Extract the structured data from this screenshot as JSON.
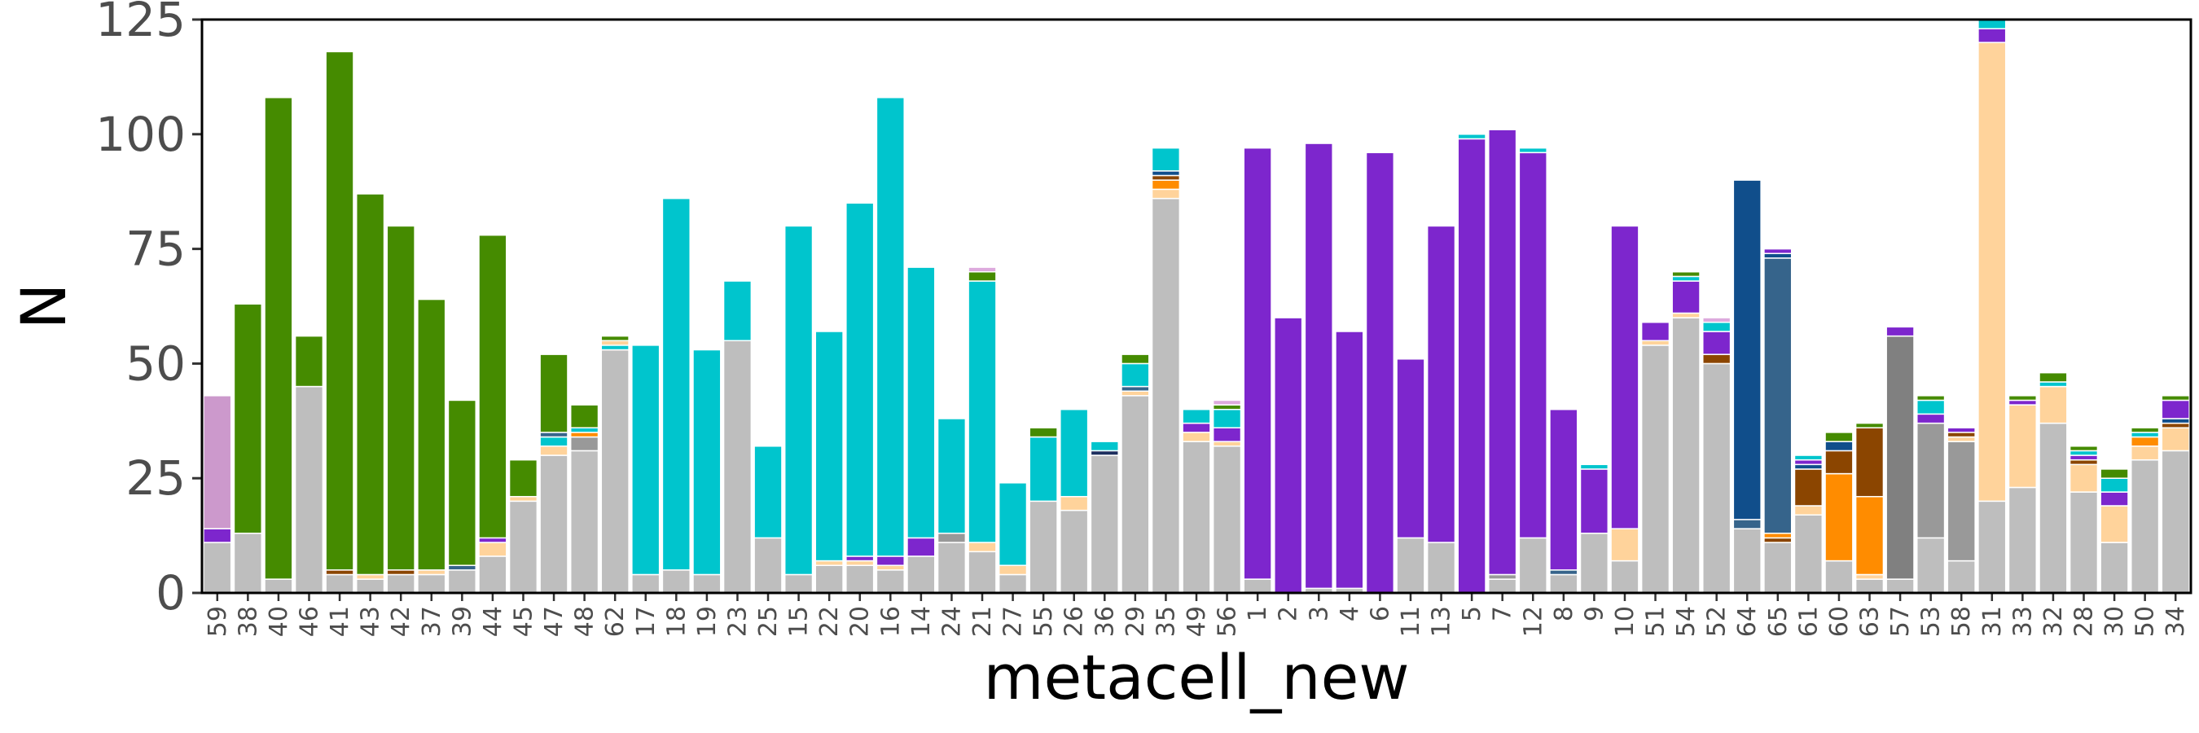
{
  "chart_data": {
    "type": "bar",
    "stacked": true,
    "title": "",
    "xlabel": "metacell_new",
    "ylabel": "N",
    "ylim": [
      0,
      125
    ],
    "yticks": [
      0,
      25,
      50,
      75,
      100,
      125
    ],
    "legend": "none",
    "grid": false,
    "colors": {
      "grey": "#bebebe",
      "dark_grey": "#999999",
      "darker_grey": "#808080",
      "green": "#458b00",
      "cyan": "#00c5cd",
      "purple": "#7d26cd",
      "peach": "#ffd39b",
      "orange": "#ff8c00",
      "brown": "#8b4500",
      "navy": "#104e8b",
      "steelblue": "#36648b",
      "plum": "#cc99cc",
      "dark_navy": "#1c2f5e",
      "light_pink": "#ddaadd"
    },
    "categories": [
      "59",
      "38",
      "40",
      "46",
      "41",
      "43",
      "42",
      "37",
      "39",
      "44",
      "45",
      "47",
      "48",
      "62",
      "17",
      "18",
      "19",
      "23",
      "25",
      "15",
      "22",
      "20",
      "16",
      "14",
      "24",
      "21",
      "27",
      "55",
      "26",
      "36",
      "29",
      "35",
      "49",
      "56",
      "1",
      "2",
      "3",
      "4",
      "6",
      "11",
      "13",
      "5",
      "7",
      "12",
      "8",
      "9",
      "10",
      "51",
      "54",
      "52",
      "64",
      "65",
      "61",
      "60",
      "63",
      "57",
      "53",
      "58",
      "31",
      "33",
      "32",
      "28",
      "30",
      "50",
      "34"
    ],
    "stacks": [
      [
        {
          "c": "grey",
          "v": 11
        },
        {
          "c": "purple",
          "v": 3
        },
        {
          "c": "plum",
          "v": 29
        }
      ],
      [
        {
          "c": "grey",
          "v": 13
        },
        {
          "c": "green",
          "v": 50
        }
      ],
      [
        {
          "c": "grey",
          "v": 3
        },
        {
          "c": "green",
          "v": 105
        }
      ],
      [
        {
          "c": "grey",
          "v": 45
        },
        {
          "c": "green",
          "v": 11
        }
      ],
      [
        {
          "c": "grey",
          "v": 4
        },
        {
          "c": "brown",
          "v": 1
        },
        {
          "c": "green",
          "v": 113
        }
      ],
      [
        {
          "c": "grey",
          "v": 3
        },
        {
          "c": "peach",
          "v": 1
        },
        {
          "c": "green",
          "v": 83
        }
      ],
      [
        {
          "c": "grey",
          "v": 4
        },
        {
          "c": "brown",
          "v": 1
        },
        {
          "c": "green",
          "v": 75
        }
      ],
      [
        {
          "c": "grey",
          "v": 4
        },
        {
          "c": "peach",
          "v": 1
        },
        {
          "c": "green",
          "v": 59
        }
      ],
      [
        {
          "c": "grey",
          "v": 5
        },
        {
          "c": "steelblue",
          "v": 1
        },
        {
          "c": "green",
          "v": 36
        }
      ],
      [
        {
          "c": "grey",
          "v": 8
        },
        {
          "c": "peach",
          "v": 3
        },
        {
          "c": "purple",
          "v": 1
        },
        {
          "c": "green",
          "v": 66
        }
      ],
      [
        {
          "c": "grey",
          "v": 20
        },
        {
          "c": "peach",
          "v": 1
        },
        {
          "c": "green",
          "v": 8
        }
      ],
      [
        {
          "c": "grey",
          "v": 30
        },
        {
          "c": "peach",
          "v": 2
        },
        {
          "c": "cyan",
          "v": 2
        },
        {
          "c": "steelblue",
          "v": 1
        },
        {
          "c": "green",
          "v": 17
        }
      ],
      [
        {
          "c": "grey",
          "v": 31
        },
        {
          "c": "dark_grey",
          "v": 3
        },
        {
          "c": "orange",
          "v": 1
        },
        {
          "c": "cyan",
          "v": 1
        },
        {
          "c": "green",
          "v": 5
        }
      ],
      [
        {
          "c": "grey",
          "v": 53
        },
        {
          "c": "cyan",
          "v": 1
        },
        {
          "c": "peach",
          "v": 1
        },
        {
          "c": "green",
          "v": 1
        }
      ],
      [
        {
          "c": "grey",
          "v": 4
        },
        {
          "c": "cyan",
          "v": 50
        }
      ],
      [
        {
          "c": "grey",
          "v": 5
        },
        {
          "c": "cyan",
          "v": 81
        }
      ],
      [
        {
          "c": "grey",
          "v": 4
        },
        {
          "c": "cyan",
          "v": 49
        }
      ],
      [
        {
          "c": "grey",
          "v": 55
        },
        {
          "c": "cyan",
          "v": 13
        }
      ],
      [
        {
          "c": "grey",
          "v": 12
        },
        {
          "c": "cyan",
          "v": 20
        }
      ],
      [
        {
          "c": "grey",
          "v": 4
        },
        {
          "c": "cyan",
          "v": 76
        }
      ],
      [
        {
          "c": "grey",
          "v": 6
        },
        {
          "c": "peach",
          "v": 1
        },
        {
          "c": "cyan",
          "v": 50
        }
      ],
      [
        {
          "c": "grey",
          "v": 6
        },
        {
          "c": "peach",
          "v": 1
        },
        {
          "c": "purple",
          "v": 1
        },
        {
          "c": "cyan",
          "v": 77
        }
      ],
      [
        {
          "c": "grey",
          "v": 5
        },
        {
          "c": "peach",
          "v": 1
        },
        {
          "c": "purple",
          "v": 2
        },
        {
          "c": "cyan",
          "v": 100
        }
      ],
      [
        {
          "c": "grey",
          "v": 8
        },
        {
          "c": "purple",
          "v": 4
        },
        {
          "c": "cyan",
          "v": 59
        }
      ],
      [
        {
          "c": "grey",
          "v": 11
        },
        {
          "c": "dark_grey",
          "v": 2
        },
        {
          "c": "cyan",
          "v": 25
        }
      ],
      [
        {
          "c": "grey",
          "v": 9
        },
        {
          "c": "peach",
          "v": 2
        },
        {
          "c": "cyan",
          "v": 57
        },
        {
          "c": "green",
          "v": 2
        },
        {
          "c": "light_pink",
          "v": 1
        }
      ],
      [
        {
          "c": "grey",
          "v": 4
        },
        {
          "c": "peach",
          "v": 2
        },
        {
          "c": "cyan",
          "v": 18
        }
      ],
      [
        {
          "c": "grey",
          "v": 20
        },
        {
          "c": "cyan",
          "v": 14
        },
        {
          "c": "green",
          "v": 2
        }
      ],
      [
        {
          "c": "grey",
          "v": 18
        },
        {
          "c": "peach",
          "v": 3
        },
        {
          "c": "cyan",
          "v": 19
        }
      ],
      [
        {
          "c": "grey",
          "v": 30
        },
        {
          "c": "dark_navy",
          "v": 1
        },
        {
          "c": "cyan",
          "v": 2
        }
      ],
      [
        {
          "c": "grey",
          "v": 43
        },
        {
          "c": "peach",
          "v": 1
        },
        {
          "c": "steelblue",
          "v": 1
        },
        {
          "c": "cyan",
          "v": 5
        },
        {
          "c": "green",
          "v": 2
        }
      ],
      [
        {
          "c": "grey",
          "v": 86
        },
        {
          "c": "peach",
          "v": 2
        },
        {
          "c": "orange",
          "v": 2
        },
        {
          "c": "brown",
          "v": 1
        },
        {
          "c": "navy",
          "v": 1
        },
        {
          "c": "cyan",
          "v": 5
        }
      ],
      [
        {
          "c": "grey",
          "v": 33
        },
        {
          "c": "peach",
          "v": 2
        },
        {
          "c": "purple",
          "v": 2
        },
        {
          "c": "cyan",
          "v": 3
        }
      ],
      [
        {
          "c": "grey",
          "v": 32
        },
        {
          "c": "peach",
          "v": 1
        },
        {
          "c": "purple",
          "v": 3
        },
        {
          "c": "cyan",
          "v": 4
        },
        {
          "c": "green",
          "v": 1
        },
        {
          "c": "light_pink",
          "v": 1
        }
      ],
      [
        {
          "c": "grey",
          "v": 3
        },
        {
          "c": "purple",
          "v": 94
        }
      ],
      [
        {
          "c": "purple",
          "v": 60
        }
      ],
      [
        {
          "c": "grey",
          "v": 1
        },
        {
          "c": "purple",
          "v": 97
        }
      ],
      [
        {
          "c": "grey",
          "v": 1
        },
        {
          "c": "purple",
          "v": 56
        }
      ],
      [
        {
          "c": "purple",
          "v": 96
        }
      ],
      [
        {
          "c": "grey",
          "v": 12
        },
        {
          "c": "purple",
          "v": 39
        }
      ],
      [
        {
          "c": "grey",
          "v": 11
        },
        {
          "c": "purple",
          "v": 69
        }
      ],
      [
        {
          "c": "purple",
          "v": 99
        },
        {
          "c": "cyan",
          "v": 1
        }
      ],
      [
        {
          "c": "grey",
          "v": 3
        },
        {
          "c": "dark_grey",
          "v": 1
        },
        {
          "c": "purple",
          "v": 97
        }
      ],
      [
        {
          "c": "grey",
          "v": 12
        },
        {
          "c": "purple",
          "v": 84
        },
        {
          "c": "cyan",
          "v": 1
        }
      ],
      [
        {
          "c": "grey",
          "v": 4
        },
        {
          "c": "steelblue",
          "v": 1
        },
        {
          "c": "purple",
          "v": 35
        }
      ],
      [
        {
          "c": "grey",
          "v": 13
        },
        {
          "c": "purple",
          "v": 14
        },
        {
          "c": "cyan",
          "v": 1
        }
      ],
      [
        {
          "c": "grey",
          "v": 7
        },
        {
          "c": "peach",
          "v": 7
        },
        {
          "c": "purple",
          "v": 66
        }
      ],
      [
        {
          "c": "grey",
          "v": 54
        },
        {
          "c": "peach",
          "v": 1
        },
        {
          "c": "purple",
          "v": 4
        }
      ],
      [
        {
          "c": "grey",
          "v": 60
        },
        {
          "c": "peach",
          "v": 1
        },
        {
          "c": "purple",
          "v": 7
        },
        {
          "c": "cyan",
          "v": 1
        },
        {
          "c": "green",
          "v": 1
        }
      ],
      [
        {
          "c": "grey",
          "v": 50
        },
        {
          "c": "brown",
          "v": 2
        },
        {
          "c": "purple",
          "v": 5
        },
        {
          "c": "cyan",
          "v": 2
        },
        {
          "c": "light_pink",
          "v": 1
        }
      ],
      [
        {
          "c": "grey",
          "v": 14
        },
        {
          "c": "steelblue",
          "v": 2
        },
        {
          "c": "navy",
          "v": 74
        }
      ],
      [
        {
          "c": "grey",
          "v": 11
        },
        {
          "c": "brown",
          "v": 1
        },
        {
          "c": "orange",
          "v": 1
        },
        {
          "c": "steelblue",
          "v": 60
        },
        {
          "c": "navy",
          "v": 1
        },
        {
          "c": "purple",
          "v": 1
        }
      ],
      [
        {
          "c": "grey",
          "v": 17
        },
        {
          "c": "peach",
          "v": 2
        },
        {
          "c": "brown",
          "v": 8
        },
        {
          "c": "navy",
          "v": 1
        },
        {
          "c": "purple",
          "v": 1
        },
        {
          "c": "cyan",
          "v": 1
        }
      ],
      [
        {
          "c": "grey",
          "v": 7
        },
        {
          "c": "orange",
          "v": 19
        },
        {
          "c": "brown",
          "v": 5
        },
        {
          "c": "navy",
          "v": 2
        },
        {
          "c": "green",
          "v": 2
        }
      ],
      [
        {
          "c": "grey",
          "v": 3
        },
        {
          "c": "peach",
          "v": 1
        },
        {
          "c": "orange",
          "v": 17
        },
        {
          "c": "brown",
          "v": 15
        },
        {
          "c": "green",
          "v": 1
        }
      ],
      [
        {
          "c": "grey",
          "v": 3
        },
        {
          "c": "darker_grey",
          "v": 53
        },
        {
          "c": "purple",
          "v": 2
        }
      ],
      [
        {
          "c": "grey",
          "v": 12
        },
        {
          "c": "dark_grey",
          "v": 25
        },
        {
          "c": "purple",
          "v": 2
        },
        {
          "c": "cyan",
          "v": 3
        },
        {
          "c": "green",
          "v": 1
        }
      ],
      [
        {
          "c": "grey",
          "v": 7
        },
        {
          "c": "dark_grey",
          "v": 26
        },
        {
          "c": "peach",
          "v": 1
        },
        {
          "c": "brown",
          "v": 1
        },
        {
          "c": "purple",
          "v": 1
        }
      ],
      [
        {
          "c": "grey",
          "v": 20
        },
        {
          "c": "peach",
          "v": 100
        },
        {
          "c": "purple",
          "v": 3
        },
        {
          "c": "cyan",
          "v": 2
        }
      ],
      [
        {
          "c": "grey",
          "v": 23
        },
        {
          "c": "peach",
          "v": 18
        },
        {
          "c": "purple",
          "v": 1
        },
        {
          "c": "green",
          "v": 1
        }
      ],
      [
        {
          "c": "grey",
          "v": 37
        },
        {
          "c": "peach",
          "v": 8
        },
        {
          "c": "cyan",
          "v": 1
        },
        {
          "c": "green",
          "v": 2
        }
      ],
      [
        {
          "c": "grey",
          "v": 22
        },
        {
          "c": "peach",
          "v": 6
        },
        {
          "c": "brown",
          "v": 1
        },
        {
          "c": "purple",
          "v": 1
        },
        {
          "c": "cyan",
          "v": 1
        },
        {
          "c": "green",
          "v": 1
        }
      ],
      [
        {
          "c": "grey",
          "v": 11
        },
        {
          "c": "peach",
          "v": 8
        },
        {
          "c": "purple",
          "v": 3
        },
        {
          "c": "cyan",
          "v": 3
        },
        {
          "c": "green",
          "v": 2
        }
      ],
      [
        {
          "c": "grey",
          "v": 29
        },
        {
          "c": "peach",
          "v": 3
        },
        {
          "c": "orange",
          "v": 2
        },
        {
          "c": "cyan",
          "v": 1
        },
        {
          "c": "green",
          "v": 1
        }
      ],
      [
        {
          "c": "grey",
          "v": 31
        },
        {
          "c": "peach",
          "v": 5
        },
        {
          "c": "brown",
          "v": 1
        },
        {
          "c": "navy",
          "v": 1
        },
        {
          "c": "purple",
          "v": 4
        },
        {
          "c": "green",
          "v": 1
        }
      ]
    ]
  }
}
